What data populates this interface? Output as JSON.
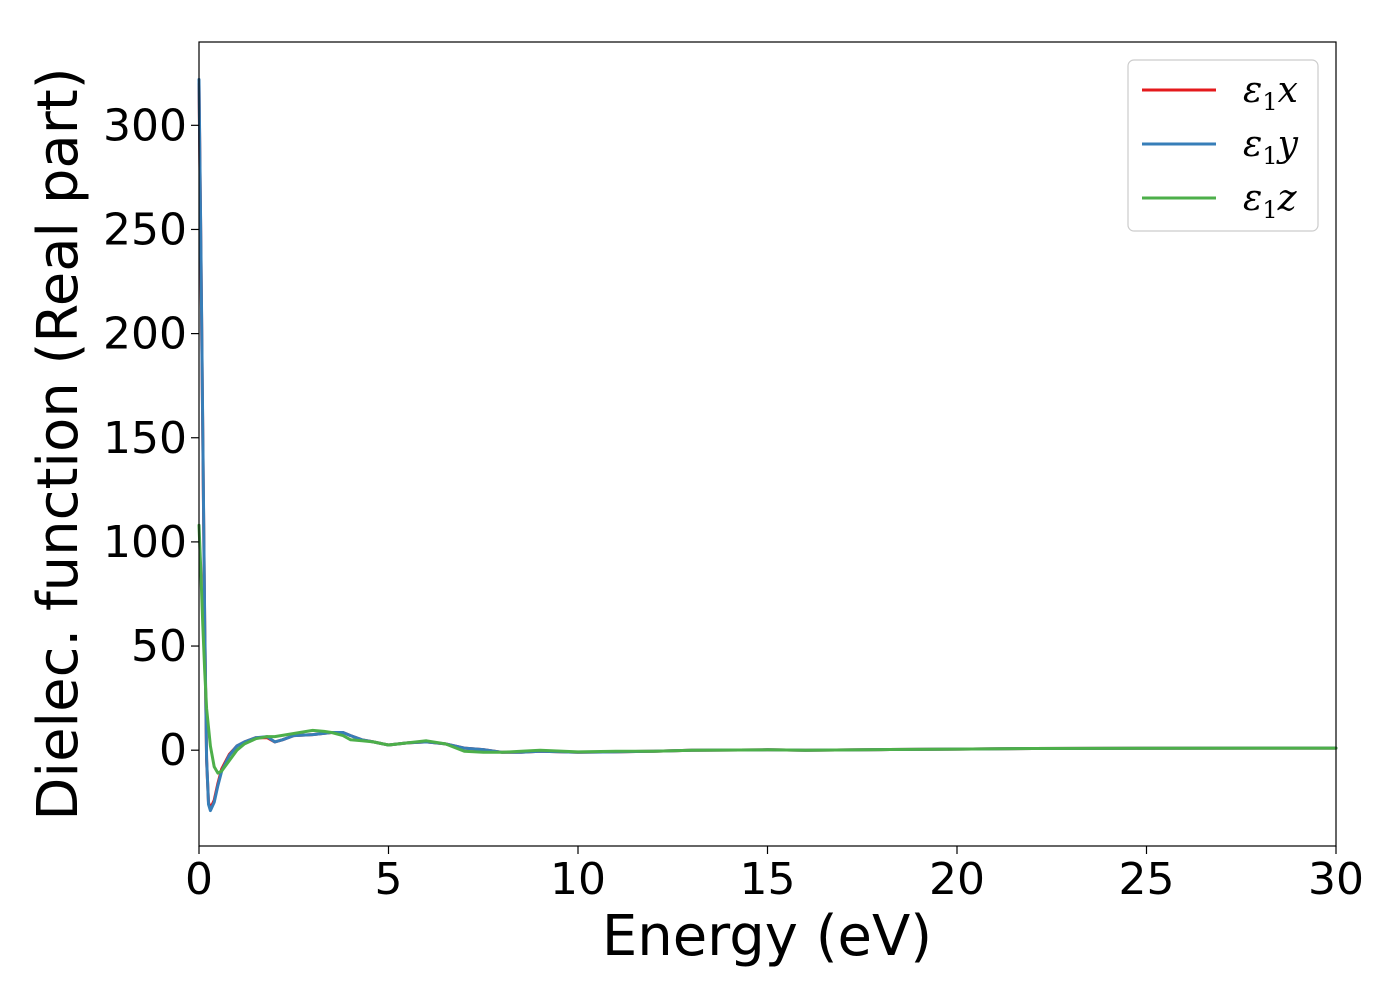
{
  "chart_data": {
    "type": "line",
    "title": "",
    "xlabel": "Energy (eV)",
    "ylabel": "Dielec. function (Real part)",
    "xlim": [
      0,
      30
    ],
    "ylim": [
      -46,
      340
    ],
    "xticks": [
      0,
      5,
      10,
      15,
      20,
      25,
      30
    ],
    "xtick_labels": [
      "0",
      "5",
      "10",
      "15",
      "20",
      "25",
      "30"
    ],
    "yticks": [
      0,
      50,
      100,
      150,
      200,
      250,
      300
    ],
    "ytick_labels": [
      "0",
      "50",
      "100",
      "150",
      "200",
      "250",
      "300"
    ],
    "grid": false,
    "legend_position": "top-right",
    "series": [
      {
        "name": "ε₁x",
        "legend_base": "ε",
        "legend_sub": "1",
        "legend_var": "x",
        "color": "#e41a1c",
        "x": [
          0.0,
          0.05,
          0.1,
          0.15,
          0.2,
          0.25,
          0.3,
          0.4,
          0.5,
          0.6,
          0.8,
          1.0,
          1.2,
          1.5,
          1.8,
          2.0,
          2.2,
          2.5,
          3.0,
          3.5,
          3.8,
          4.0,
          4.3,
          4.6,
          5.0,
          5.5,
          6.0,
          6.5,
          7.0,
          7.5,
          8.0,
          8.5,
          9.0,
          10.0,
          11.0,
          12.0,
          13.0,
          15.0,
          16.0,
          18.0,
          20.0,
          22.0,
          25.0,
          28.0,
          30.0
        ],
        "y": [
          320,
          240,
          150,
          60,
          -5,
          -25,
          -28,
          -24,
          -16,
          -9,
          -2,
          2,
          4,
          6,
          6,
          4,
          5,
          7,
          7.5,
          8.5,
          8.5,
          7,
          5,
          4,
          2.5,
          3.5,
          4,
          3,
          1,
          0.3,
          -1,
          -1,
          -0.5,
          -1,
          -0.8,
          -0.5,
          0,
          0.2,
          0,
          0.3,
          0.5,
          0.8,
          0.9,
          1,
          1
        ]
      },
      {
        "name": "ε₁y",
        "legend_base": "ε",
        "legend_sub": "1",
        "legend_var": "y",
        "color": "#377eb8",
        "x": [
          0.0,
          0.05,
          0.1,
          0.15,
          0.2,
          0.25,
          0.3,
          0.4,
          0.5,
          0.6,
          0.8,
          1.0,
          1.2,
          1.5,
          1.8,
          2.0,
          2.2,
          2.5,
          3.0,
          3.5,
          3.8,
          4.0,
          4.3,
          4.6,
          5.0,
          5.5,
          6.0,
          6.5,
          7.0,
          7.5,
          8.0,
          8.5,
          9.0,
          10.0,
          11.0,
          12.0,
          13.0,
          15.0,
          16.0,
          18.0,
          20.0,
          22.0,
          25.0,
          28.0,
          30.0
        ],
        "y": [
          322,
          242,
          152,
          62,
          -4,
          -26,
          -29,
          -25,
          -17,
          -10,
          -2.5,
          2,
          4,
          6,
          6.5,
          4,
          5,
          7,
          7.5,
          8.5,
          8.5,
          7,
          5,
          4,
          2.5,
          3.5,
          4,
          3,
          1,
          0.3,
          -1,
          -1,
          -0.5,
          -1,
          -0.8,
          -0.5,
          0,
          0.2,
          0,
          0.3,
          0.5,
          0.8,
          0.9,
          1,
          1
        ]
      },
      {
        "name": "ε₁z",
        "legend_base": "ε",
        "legend_sub": "1",
        "legend_var": "z",
        "color": "#4daf4a",
        "x": [
          0.0,
          0.05,
          0.1,
          0.15,
          0.2,
          0.3,
          0.4,
          0.5,
          0.6,
          0.8,
          1.0,
          1.2,
          1.5,
          1.8,
          2.0,
          2.5,
          3.0,
          3.3,
          3.5,
          3.8,
          4.0,
          4.3,
          4.6,
          5.0,
          5.5,
          6.0,
          6.5,
          7.0,
          7.5,
          8.0,
          8.5,
          9.0,
          10.0,
          11.0,
          12.0,
          13.0,
          15.0,
          16.0,
          18.0,
          20.0,
          22.0,
          25.0,
          28.0,
          30.0
        ],
        "y": [
          108,
          85,
          60,
          38,
          20,
          2,
          -8,
          -11,
          -10,
          -5,
          0,
          3,
          5.5,
          6.5,
          6.5,
          8,
          9.5,
          9,
          8.5,
          7,
          5,
          4.5,
          4,
          2.5,
          3.5,
          4.5,
          3,
          -0.5,
          -1,
          -1,
          -0.5,
          0,
          -0.8,
          -0.5,
          -0.5,
          0,
          0.2,
          0,
          0.3,
          0.5,
          0.8,
          0.9,
          1,
          1
        ]
      }
    ]
  }
}
